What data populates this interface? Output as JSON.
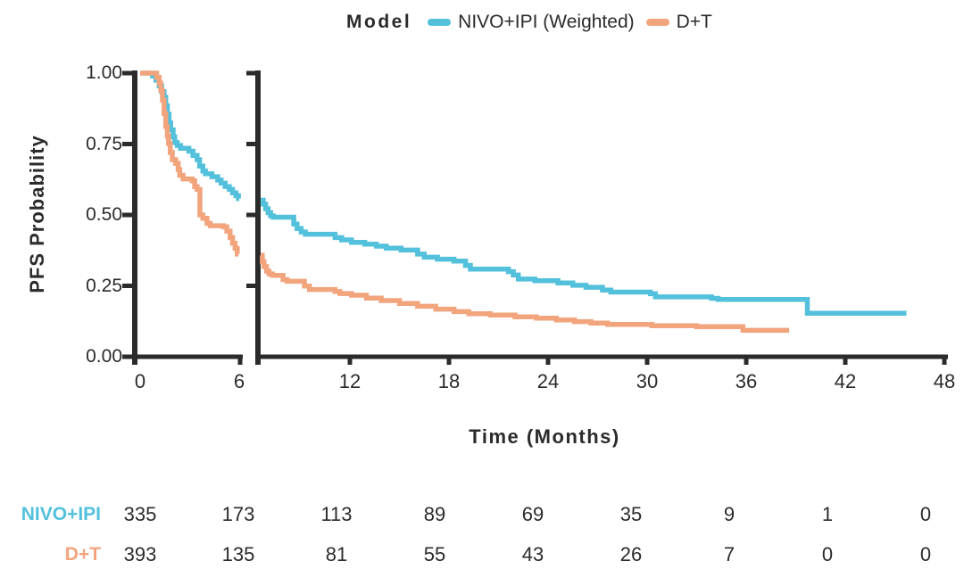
{
  "legend": {
    "title": "Model",
    "items": [
      {
        "label": "NIVO+IPI (Weighted)",
        "color": "#53C0DC"
      },
      {
        "label": "D+T",
        "color": "#F2A47D"
      }
    ]
  },
  "axes": {
    "y_label": "PFS Probability",
    "x_label": "Time (Months)",
    "axis_color": "#2b2b2b",
    "y_ticks": [
      {
        "label": "1.00",
        "value": 1.0
      },
      {
        "label": "0.75",
        "value": 0.75
      },
      {
        "label": "0.50",
        "value": 0.5
      },
      {
        "label": "0.25",
        "value": 0.25
      },
      {
        "label": "0.00",
        "value": 0.0
      }
    ],
    "x_ticks_left_panel": [
      {
        "label": "0",
        "month": 0
      },
      {
        "label": "6",
        "month": 6
      }
    ],
    "x_ticks_right_panel": [
      {
        "label": "12",
        "month": 12
      },
      {
        "label": "18",
        "month": 18
      },
      {
        "label": "24",
        "month": 24
      },
      {
        "label": "30",
        "month": 30
      },
      {
        "label": "36",
        "month": 36
      },
      {
        "label": "42",
        "month": 42
      },
      {
        "label": "48",
        "month": 48
      }
    ]
  },
  "chart_data": {
    "type": "line",
    "subtype": "kaplan-meier-step",
    "title": "",
    "xlabel": "Time (Months)",
    "ylabel": "PFS Probability",
    "x_axis": {
      "range": [
        0,
        48
      ],
      "break_between": [
        6,
        6.4
      ],
      "tick_interval": 6
    },
    "y_axis": {
      "range": [
        0,
        1
      ],
      "ticks": [
        0,
        0.25,
        0.5,
        0.75,
        1.0
      ]
    },
    "legend_position": "top",
    "grid": false,
    "series": [
      {
        "name": "NIVO+IPI (Weighted)",
        "color": "#53C0DC",
        "segments": [
          [
            [
              0,
              1.0
            ],
            [
              0.6,
              1.0
            ],
            [
              0.75,
              0.99
            ],
            [
              0.95,
              0.975
            ],
            [
              1.15,
              0.955
            ],
            [
              1.3,
              0.935
            ],
            [
              1.45,
              0.915
            ],
            [
              1.55,
              0.885
            ],
            [
              1.65,
              0.855
            ],
            [
              1.75,
              0.825
            ],
            [
              1.85,
              0.8
            ],
            [
              2.0,
              0.775
            ],
            [
              2.1,
              0.755
            ],
            [
              2.25,
              0.745
            ],
            [
              2.45,
              0.735
            ],
            [
              2.95,
              0.725
            ],
            [
              3.2,
              0.71
            ],
            [
              3.45,
              0.695
            ],
            [
              3.6,
              0.672
            ],
            [
              3.8,
              0.655
            ],
            [
              3.95,
              0.645
            ],
            [
              4.35,
              0.635
            ],
            [
              4.7,
              0.623
            ],
            [
              4.9,
              0.612
            ],
            [
              5.15,
              0.6
            ],
            [
              5.4,
              0.59
            ],
            [
              5.6,
              0.578
            ],
            [
              5.8,
              0.568
            ],
            [
              5.95,
              0.558
            ],
            [
              6.0,
              0.558
            ]
          ],
          [
            [
              6.6,
              0.552
            ],
            [
              6.75,
              0.538
            ],
            [
              6.9,
              0.522
            ],
            [
              7.05,
              0.508
            ],
            [
              7.2,
              0.497
            ],
            [
              7.35,
              0.492
            ],
            [
              8.6,
              0.468
            ],
            [
              8.8,
              0.452
            ],
            [
              9.05,
              0.44
            ],
            [
              9.3,
              0.432
            ],
            [
              11.1,
              0.42
            ],
            [
              11.5,
              0.412
            ],
            [
              12.1,
              0.403
            ],
            [
              12.9,
              0.397
            ],
            [
              13.6,
              0.39
            ],
            [
              14.2,
              0.383
            ],
            [
              15.1,
              0.376
            ],
            [
              16.1,
              0.362
            ],
            [
              16.5,
              0.351
            ],
            [
              17.3,
              0.344
            ],
            [
              18.3,
              0.337
            ],
            [
              19.0,
              0.322
            ],
            [
              19.3,
              0.309
            ],
            [
              21.6,
              0.3
            ],
            [
              21.9,
              0.288
            ],
            [
              22.2,
              0.274
            ],
            [
              23.2,
              0.268
            ],
            [
              24.6,
              0.26
            ],
            [
              25.5,
              0.252
            ],
            [
              26.3,
              0.245
            ],
            [
              27.3,
              0.235
            ],
            [
              27.8,
              0.228
            ],
            [
              30.2,
              0.222
            ],
            [
              30.5,
              0.211
            ],
            [
              33.9,
              0.206
            ],
            [
              34.3,
              0.202
            ],
            [
              39.7,
              0.153
            ],
            [
              45.7,
              0.153
            ]
          ]
        ]
      },
      {
        "name": "D+T",
        "color": "#F2A47D",
        "segments": [
          [
            [
              0,
              1.0
            ],
            [
              0.85,
              1.0
            ],
            [
              1.0,
              0.985
            ],
            [
              1.15,
              0.965
            ],
            [
              1.25,
              0.94
            ],
            [
              1.35,
              0.905
            ],
            [
              1.45,
              0.858
            ],
            [
              1.55,
              0.812
            ],
            [
              1.65,
              0.778
            ],
            [
              1.72,
              0.752
            ],
            [
              1.82,
              0.72
            ],
            [
              1.95,
              0.695
            ],
            [
              2.15,
              0.682
            ],
            [
              2.3,
              0.66
            ],
            [
              2.4,
              0.64
            ],
            [
              2.6,
              0.627
            ],
            [
              3.15,
              0.62
            ],
            [
              3.3,
              0.6
            ],
            [
              3.45,
              0.59
            ],
            [
              3.62,
              0.5
            ],
            [
              3.8,
              0.488
            ],
            [
              4.05,
              0.47
            ],
            [
              4.25,
              0.462
            ],
            [
              5.05,
              0.458
            ],
            [
              5.25,
              0.443
            ],
            [
              5.45,
              0.42
            ],
            [
              5.6,
              0.4
            ],
            [
              5.75,
              0.382
            ],
            [
              5.88,
              0.362
            ],
            [
              5.95,
              0.362
            ]
          ],
          [
            [
              6.6,
              0.358
            ],
            [
              6.7,
              0.335
            ],
            [
              6.8,
              0.318
            ],
            [
              6.95,
              0.302
            ],
            [
              7.1,
              0.292
            ],
            [
              7.3,
              0.287
            ],
            [
              7.95,
              0.272
            ],
            [
              8.2,
              0.266
            ],
            [
              9.25,
              0.249
            ],
            [
              9.55,
              0.237
            ],
            [
              11.1,
              0.23
            ],
            [
              11.4,
              0.223
            ],
            [
              12.1,
              0.217
            ],
            [
              13.0,
              0.207
            ],
            [
              13.9,
              0.198
            ],
            [
              15.0,
              0.188
            ],
            [
              16.1,
              0.178
            ],
            [
              17.2,
              0.168
            ],
            [
              18.3,
              0.159
            ],
            [
              19.2,
              0.152
            ],
            [
              20.5,
              0.147
            ],
            [
              22.0,
              0.141
            ],
            [
              23.3,
              0.136
            ],
            [
              24.5,
              0.13
            ],
            [
              25.6,
              0.124
            ],
            [
              26.6,
              0.119
            ],
            [
              27.6,
              0.114
            ],
            [
              30.3,
              0.109
            ],
            [
              33.0,
              0.106
            ],
            [
              35.8,
              0.093
            ],
            [
              38.6,
              0.093
            ]
          ]
        ]
      }
    ],
    "risk_table": {
      "times": [
        0,
        6,
        12,
        18,
        24,
        30,
        36,
        42,
        48
      ],
      "rows": [
        {
          "label": "NIVO+IPI",
          "color": "#53C0DC",
          "counts": [
            335,
            173,
            113,
            89,
            69,
            35,
            9,
            1,
            0
          ]
        },
        {
          "label": "D+T",
          "color": "#F2A47D",
          "counts": [
            393,
            135,
            81,
            55,
            43,
            26,
            7,
            0,
            0
          ]
        }
      ]
    }
  }
}
